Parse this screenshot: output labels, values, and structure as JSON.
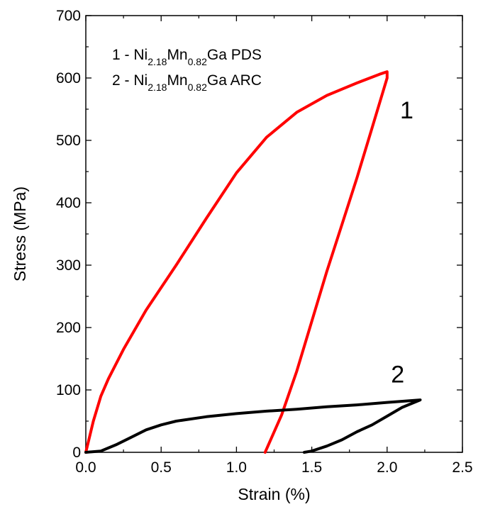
{
  "chart_data": {
    "type": "line",
    "xlabel": "Strain (%)",
    "ylabel": "Stress (MPa)",
    "xlim": [
      0,
      2.5
    ],
    "ylim": [
      0,
      700
    ],
    "xticks": [
      0.0,
      0.5,
      1.0,
      1.5,
      2.0,
      2.5
    ],
    "yticks": [
      0,
      100,
      200,
      300,
      400,
      500,
      600,
      700
    ],
    "xtick_labels": [
      "0.0",
      "0.5",
      "1.0",
      "1.5",
      "2.0",
      "2.5"
    ],
    "ytick_labels": [
      "0",
      "100",
      "200",
      "300",
      "400",
      "500",
      "600",
      "700"
    ],
    "grid": false,
    "legend": {
      "placement": "top-left",
      "entries": [
        {
          "prefix": "1 - Ni",
          "sub1": "2.18",
          "mid": "Mn",
          "sub2": "0.82",
          "suffix": "Ga PDS"
        },
        {
          "prefix": "2 - Ni",
          "sub1": "2.18",
          "mid": "Mn",
          "sub2": "0.82",
          "suffix": "Ga ARC"
        }
      ]
    },
    "series": [
      {
        "label": "1",
        "color": "#ff0000",
        "points": [
          [
            0.0,
            0
          ],
          [
            0.05,
            50
          ],
          [
            0.1,
            90
          ],
          [
            0.15,
            118
          ],
          [
            0.25,
            165
          ],
          [
            0.4,
            228
          ],
          [
            0.6,
            300
          ],
          [
            0.8,
            375
          ],
          [
            1.0,
            448
          ],
          [
            1.2,
            505
          ],
          [
            1.4,
            545
          ],
          [
            1.6,
            572
          ],
          [
            1.8,
            592
          ],
          [
            1.95,
            606
          ],
          [
            2.0,
            610
          ],
          [
            2.0,
            600
          ],
          [
            1.9,
            520
          ],
          [
            1.8,
            440
          ],
          [
            1.7,
            365
          ],
          [
            1.6,
            290
          ],
          [
            1.5,
            210
          ],
          [
            1.4,
            130
          ],
          [
            1.3,
            60
          ],
          [
            1.19,
            0
          ]
        ]
      },
      {
        "label": "2",
        "color": "#000000",
        "points": [
          [
            0.0,
            0
          ],
          [
            0.1,
            2
          ],
          [
            0.2,
            12
          ],
          [
            0.3,
            24
          ],
          [
            0.4,
            36
          ],
          [
            0.5,
            44
          ],
          [
            0.6,
            50
          ],
          [
            0.8,
            57
          ],
          [
            1.0,
            62
          ],
          [
            1.2,
            66
          ],
          [
            1.4,
            69
          ],
          [
            1.6,
            73
          ],
          [
            1.8,
            76
          ],
          [
            2.0,
            80
          ],
          [
            2.22,
            84
          ],
          [
            2.1,
            72
          ],
          [
            2.0,
            58
          ],
          [
            1.9,
            44
          ],
          [
            1.8,
            33
          ],
          [
            1.7,
            20
          ],
          [
            1.6,
            10
          ],
          [
            1.5,
            2
          ],
          [
            1.45,
            0
          ]
        ]
      }
    ],
    "curve_labels": [
      {
        "text": "1",
        "x": 2.13,
        "y": 535
      },
      {
        "text": "2",
        "x": 2.07,
        "y": 112
      }
    ]
  }
}
